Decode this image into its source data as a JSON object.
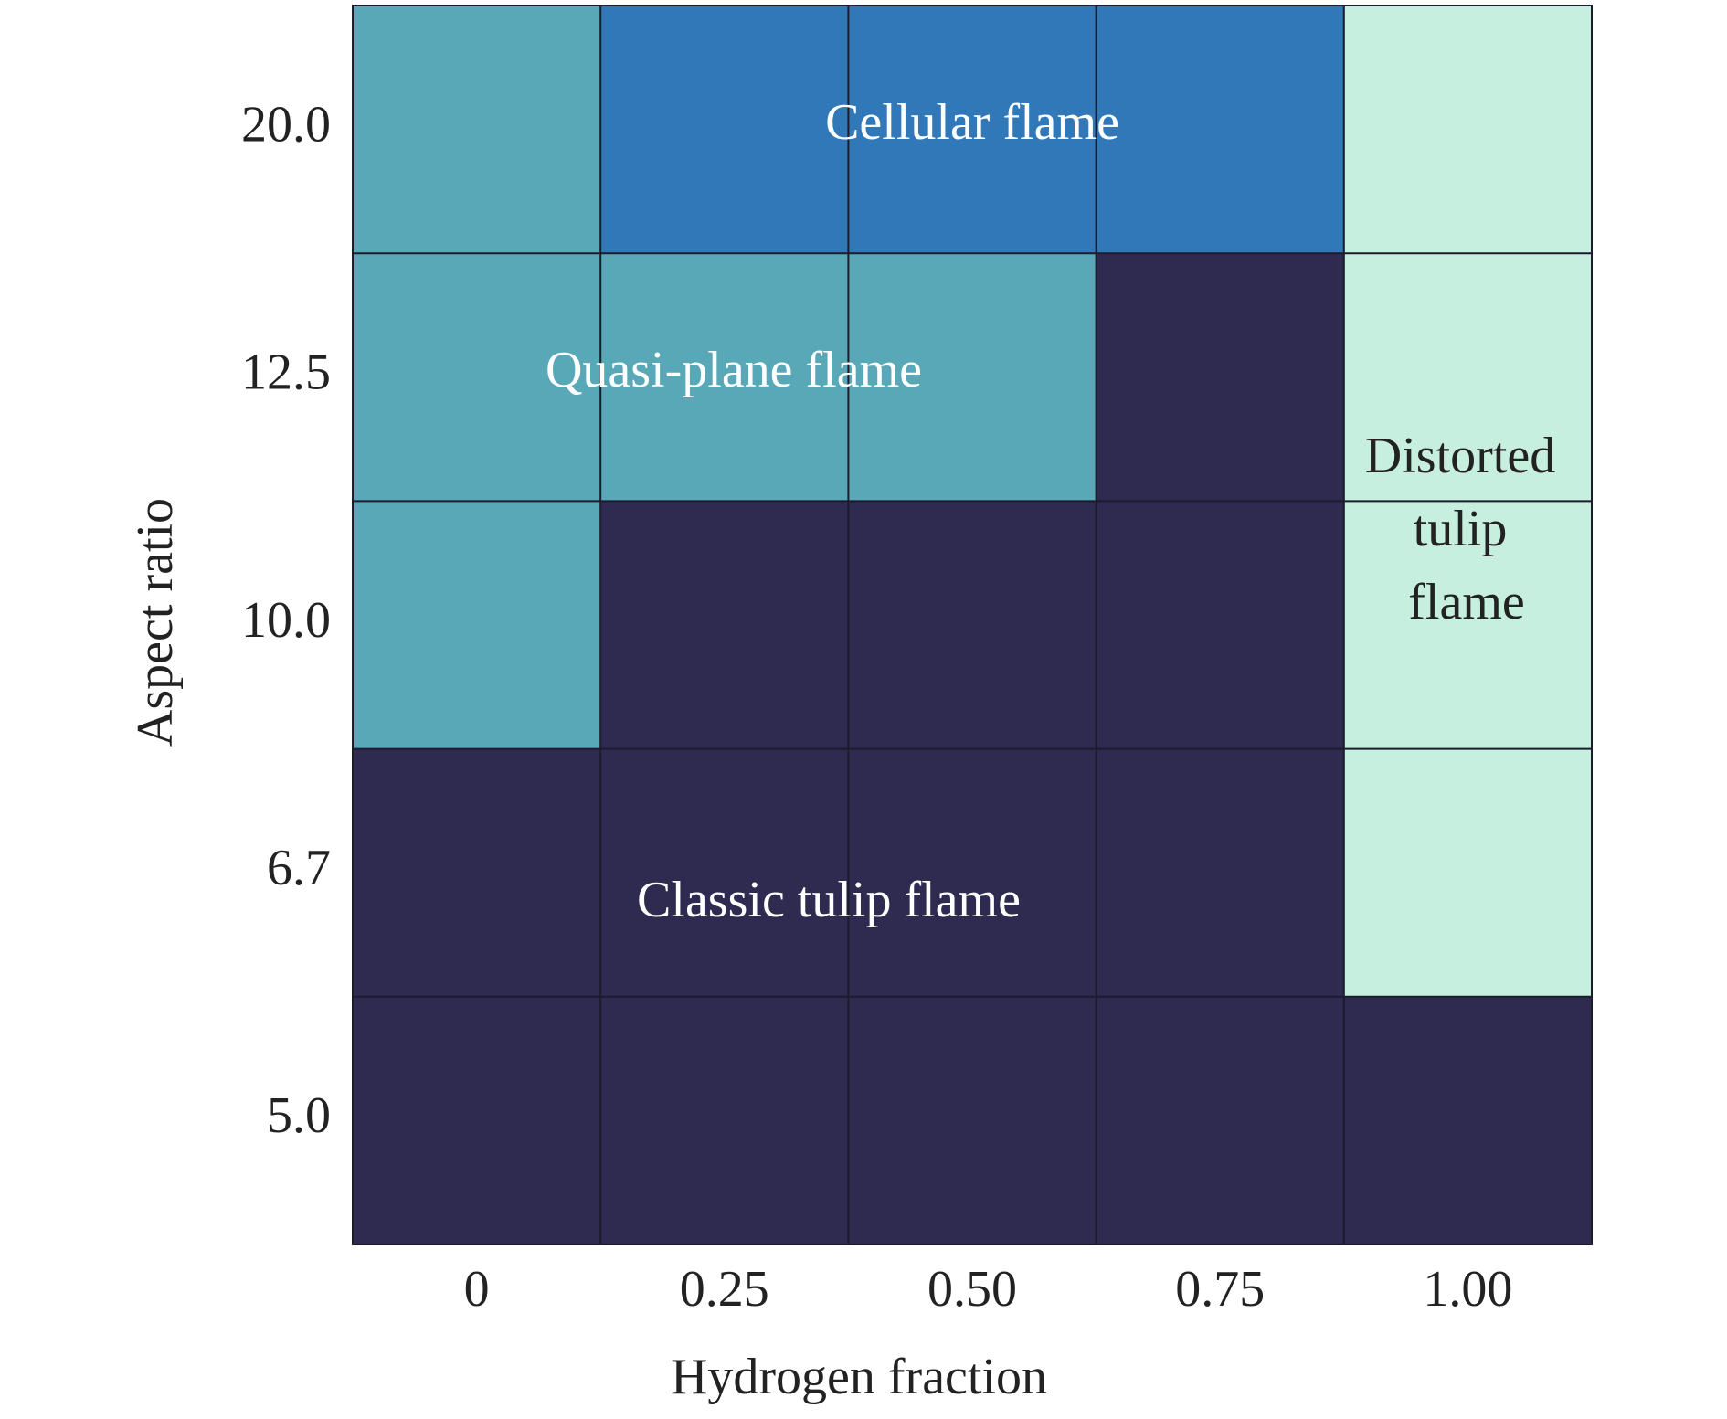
{
  "chart_data": {
    "type": "heatmap",
    "x_label": "Hydrogen fraction",
    "y_label": "Aspect ratio",
    "x_categories": [
      "0",
      "0.25",
      "0.50",
      "0.75",
      "1.00"
    ],
    "y_categories": [
      "20.0",
      "12.5",
      "10.0",
      "6.7",
      "5.0"
    ],
    "regimes": [
      {
        "name": "Classic tulip flame",
        "color": "#2e2a50"
      },
      {
        "name": "Quasi-plane flame",
        "color": "#58a8b8"
      },
      {
        "name": "Cellular flame",
        "color": "#3178b8"
      },
      {
        "name": "Distorted tulip flame",
        "color": "#c6efe0"
      }
    ],
    "cells": [
      [
        1,
        2,
        2,
        2,
        3
      ],
      [
        1,
        1,
        1,
        0,
        3
      ],
      [
        1,
        0,
        0,
        0,
        3
      ],
      [
        0,
        0,
        0,
        0,
        3
      ],
      [
        0,
        0,
        0,
        0,
        0
      ]
    ]
  }
}
